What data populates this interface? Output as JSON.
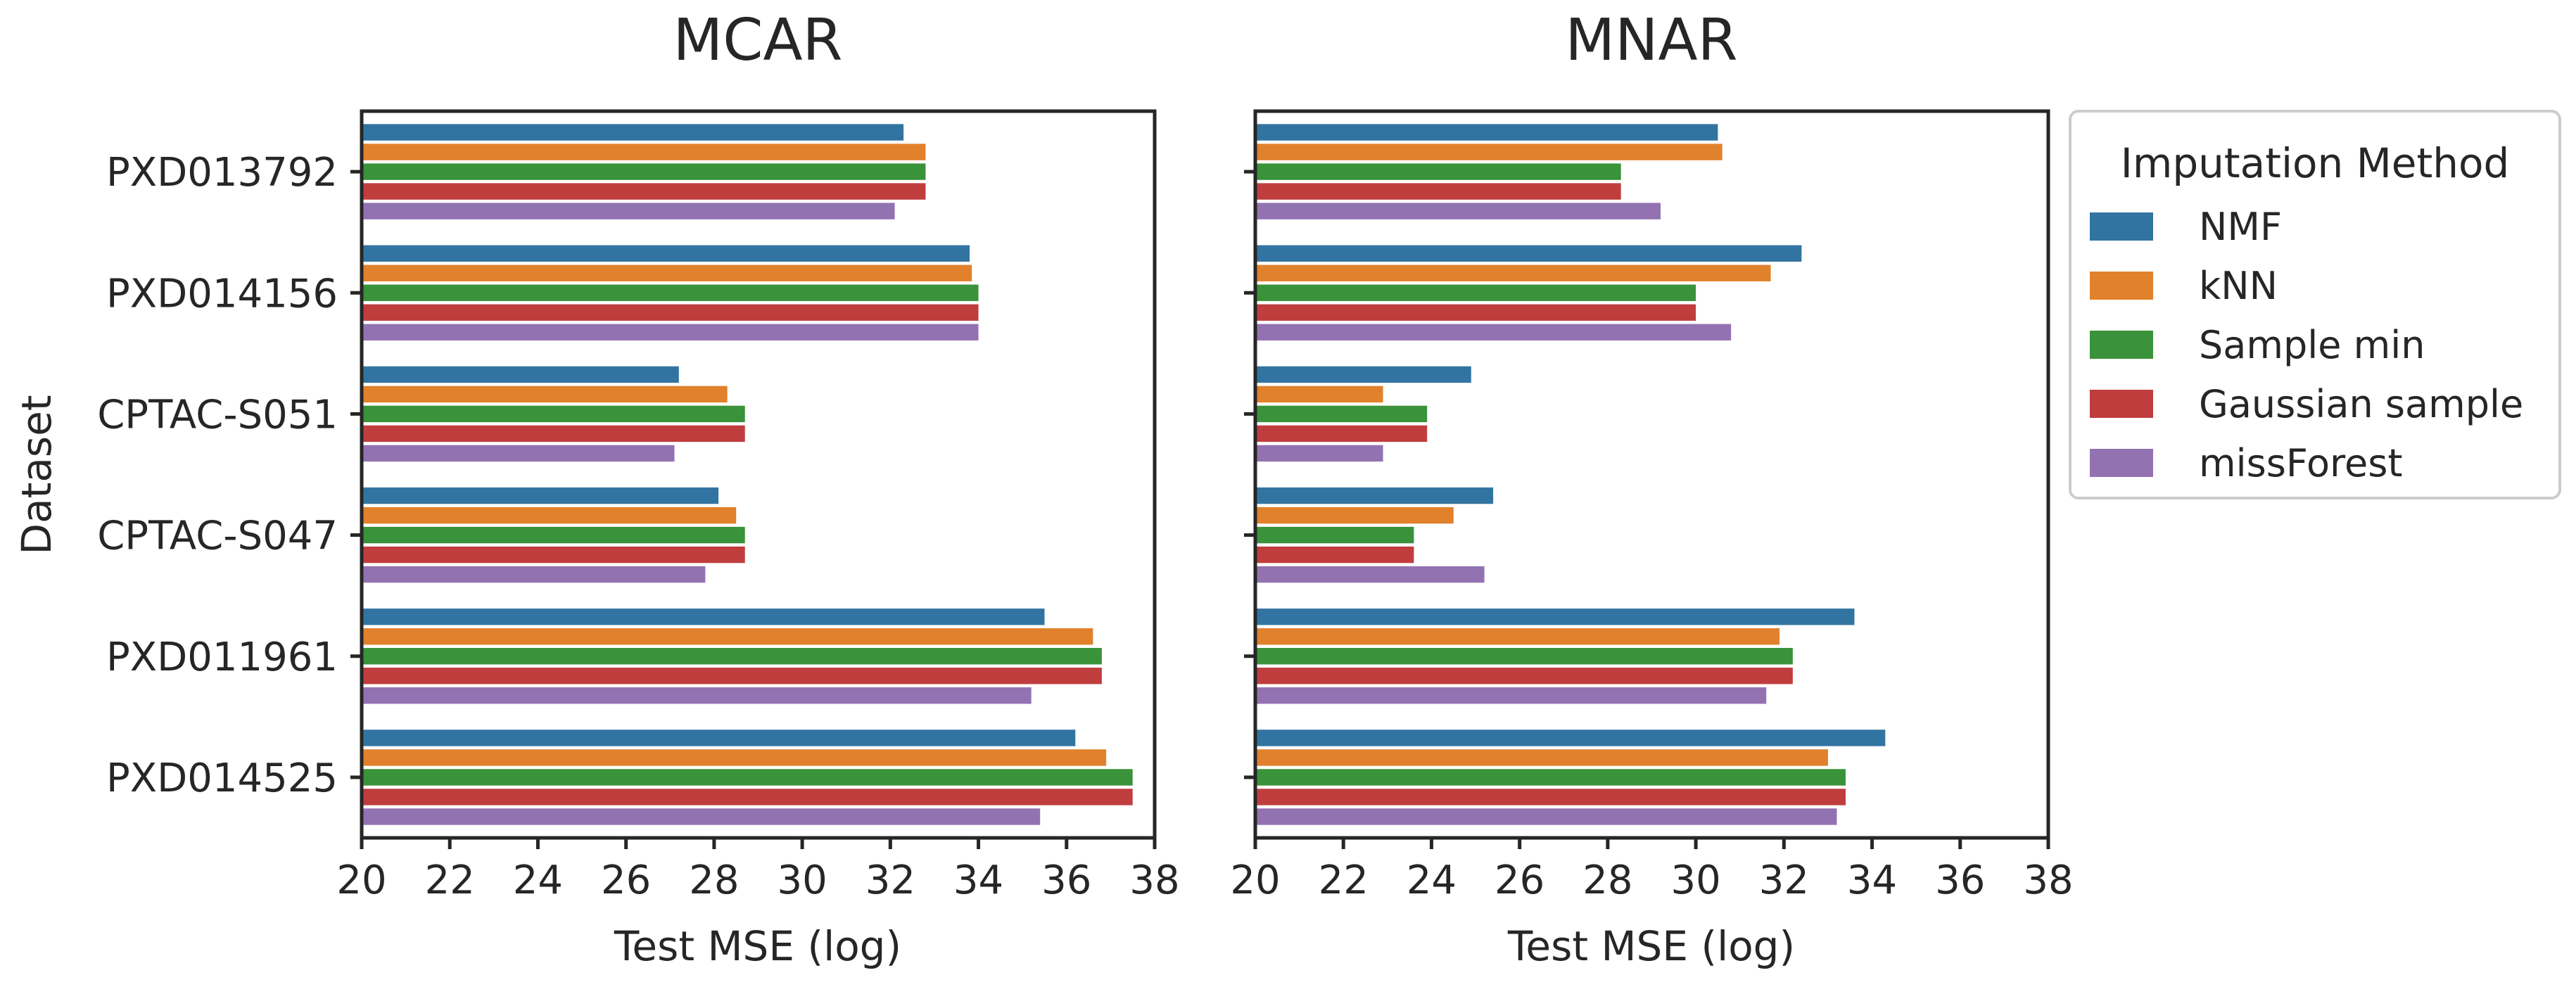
{
  "chart_data": {
    "type": "bar",
    "orientation": "horizontal",
    "ylabel": "Dataset",
    "categories": [
      "PXD013792",
      "PXD014156",
      "CPTAC-S051",
      "CPTAC-S047",
      "PXD011961",
      "PXD014525"
    ],
    "legend": {
      "title": "Imputation Method",
      "placement": "right, outside plot"
    },
    "series_names": [
      "NMF",
      "kNN",
      "Sample min",
      "Gaussian sample",
      "missForest"
    ],
    "colors": [
      "#3274a1",
      "#e1812c",
      "#3a923a",
      "#c03d3e",
      "#9372b2"
    ],
    "panels": [
      {
        "title": "MCAR",
        "xlabel": "Test MSE (log)",
        "xlim": [
          20,
          38
        ],
        "xticks": [
          "20",
          "22",
          "24",
          "26",
          "28",
          "30",
          "32",
          "34",
          "36",
          "38"
        ],
        "series": [
          {
            "name": "NMF",
            "values": [
              32.3,
              33.8,
              27.2,
              28.1,
              35.5,
              36.2
            ]
          },
          {
            "name": "kNN",
            "values": [
              32.8,
              33.85,
              28.3,
              28.5,
              36.6,
              36.9
            ]
          },
          {
            "name": "Sample min",
            "values": [
              32.8,
              34.0,
              28.7,
              28.7,
              36.8,
              37.5
            ]
          },
          {
            "name": "Gaussian sample",
            "values": [
              32.8,
              34.0,
              28.7,
              28.7,
              36.8,
              37.5
            ]
          },
          {
            "name": "missForest",
            "values": [
              32.1,
              34.0,
              27.1,
              27.8,
              35.2,
              35.4
            ]
          }
        ]
      },
      {
        "title": "MNAR",
        "xlabel": "Test MSE (log)",
        "xlim": [
          20,
          38
        ],
        "xticks": [
          "20",
          "22",
          "24",
          "26",
          "28",
          "30",
          "32",
          "34",
          "36",
          "38"
        ],
        "series": [
          {
            "name": "NMF",
            "values": [
              30.5,
              32.4,
              24.9,
              25.4,
              33.6,
              34.3
            ]
          },
          {
            "name": "kNN",
            "values": [
              30.6,
              31.7,
              22.9,
              24.5,
              31.9,
              33.0
            ]
          },
          {
            "name": "Sample min",
            "values": [
              28.3,
              30.0,
              23.9,
              23.6,
              32.2,
              33.4
            ]
          },
          {
            "name": "Gaussian sample",
            "values": [
              28.3,
              30.0,
              23.9,
              23.6,
              32.2,
              33.4
            ]
          },
          {
            "name": "missForest",
            "values": [
              29.2,
              30.8,
              22.9,
              25.2,
              31.6,
              33.2
            ]
          }
        ]
      }
    ]
  }
}
